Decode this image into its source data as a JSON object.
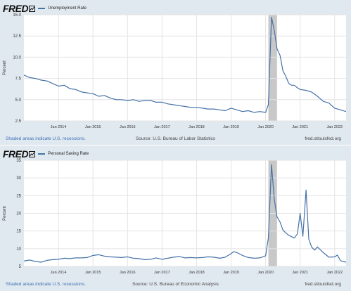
{
  "colors": {
    "line": "#4572a7",
    "recession": "#c8c8c8",
    "grid": "#e4e4e4",
    "plot_bg": "#ffffff",
    "panel_bg": "#e1e9f0"
  },
  "icons": {
    "logo": "fred-logo-chart-mark"
  },
  "chart_data": [
    {
      "type": "line",
      "logo": "FRED",
      "legend": "Unemployment Rate",
      "ylabel": "Percent",
      "ylim": [
        2.5,
        15.0
      ],
      "yticks": [
        "2.5",
        "5.0",
        "7.5",
        "10.0",
        "12.5",
        "15.0"
      ],
      "ytick_values": [
        2.5,
        5.0,
        7.5,
        10.0,
        12.5,
        15.0
      ],
      "xlim": [
        2013.0,
        2022.33
      ],
      "xticks": [
        "Jan 2014",
        "Jan 2015",
        "Jan 2016",
        "Jan 2017",
        "Jan 2018",
        "Jan 2019",
        "Jan 2020",
        "Jan 2021",
        "Jan 2022"
      ],
      "xtick_values": [
        2014,
        2015,
        2016,
        2017,
        2018,
        2019,
        2020,
        2021,
        2022
      ],
      "recession": [
        2020.08,
        2020.33
      ],
      "grid": true,
      "series": [
        {
          "x": [
            2013.0,
            2013.17,
            2013.33,
            2013.5,
            2013.67,
            2013.83,
            2014.0,
            2014.17,
            2014.33,
            2014.5,
            2014.67,
            2014.83,
            2015.0,
            2015.17,
            2015.33,
            2015.5,
            2015.67,
            2015.83,
            2016.0,
            2016.17,
            2016.33,
            2016.5,
            2016.67,
            2016.83,
            2017.0,
            2017.17,
            2017.33,
            2017.5,
            2017.67,
            2017.83,
            2018.0,
            2018.17,
            2018.33,
            2018.5,
            2018.67,
            2018.83,
            2019.0,
            2019.17,
            2019.33,
            2019.5,
            2019.67,
            2019.83,
            2020.0,
            2020.08,
            2020.17,
            2020.25,
            2020.33,
            2020.42,
            2020.5,
            2020.58,
            2020.67,
            2020.75,
            2020.83,
            2020.92,
            2021.0,
            2021.17,
            2021.33,
            2021.5,
            2021.67,
            2021.83,
            2022.0,
            2022.17,
            2022.33
          ],
          "values": [
            7.9,
            7.6,
            7.5,
            7.3,
            7.2,
            6.9,
            6.6,
            6.7,
            6.3,
            6.2,
            5.9,
            5.8,
            5.7,
            5.4,
            5.5,
            5.2,
            5.0,
            5.0,
            4.9,
            5.0,
            4.8,
            4.9,
            4.9,
            4.7,
            4.7,
            4.5,
            4.4,
            4.3,
            4.2,
            4.1,
            4.1,
            4.0,
            3.9,
            3.9,
            3.8,
            3.7,
            4.0,
            3.8,
            3.6,
            3.7,
            3.5,
            3.6,
            3.5,
            4.4,
            14.7,
            13.2,
            11.0,
            10.2,
            8.4,
            7.8,
            6.9,
            6.7,
            6.7,
            6.4,
            6.2,
            6.1,
            5.9,
            5.4,
            4.8,
            4.6,
            4.0,
            3.8,
            3.6
          ]
        }
      ],
      "footer": {
        "note": "Shaded areas indicate U.S. recessions.",
        "source": "Source: U.S. Bureau of Labor Statistics",
        "url": "fred.stlouisfed.org"
      }
    },
    {
      "type": "line",
      "logo": "FRED",
      "legend": "Personal Saving Rate",
      "ylabel": "Percent",
      "ylim": [
        5,
        35
      ],
      "yticks": [
        "5",
        "10",
        "15",
        "20",
        "25",
        "30",
        "35"
      ],
      "ytick_values": [
        5,
        10,
        15,
        20,
        25,
        30,
        35
      ],
      "xlim": [
        2013.0,
        2022.33
      ],
      "xticks": [
        "Jan 2014",
        "Jan 2015",
        "Jan 2016",
        "Jan 2017",
        "Jan 2018",
        "Jan 2019",
        "Jan 2020",
        "Jan 2021",
        "Jan 2022"
      ],
      "xtick_values": [
        2014,
        2015,
        2016,
        2017,
        2018,
        2019,
        2020,
        2021,
        2022
      ],
      "recession": [
        2020.08,
        2020.33
      ],
      "grid": true,
      "series": [
        {
          "x": [
            2013.0,
            2013.17,
            2013.33,
            2013.5,
            2013.67,
            2013.83,
            2014.0,
            2014.17,
            2014.33,
            2014.5,
            2014.67,
            2014.83,
            2015.0,
            2015.17,
            2015.33,
            2015.5,
            2015.67,
            2015.83,
            2016.0,
            2016.17,
            2016.33,
            2016.5,
            2016.67,
            2016.83,
            2017.0,
            2017.17,
            2017.33,
            2017.5,
            2017.67,
            2017.83,
            2018.0,
            2018.17,
            2018.33,
            2018.5,
            2018.67,
            2018.83,
            2019.0,
            2019.08,
            2019.17,
            2019.33,
            2019.5,
            2019.67,
            2019.83,
            2020.0,
            2020.08,
            2020.17,
            2020.25,
            2020.33,
            2020.42,
            2020.5,
            2020.58,
            2020.67,
            2020.83,
            2020.92,
            2021.0,
            2021.08,
            2021.17,
            2021.25,
            2021.33,
            2021.42,
            2021.5,
            2021.67,
            2021.83,
            2022.0,
            2022.08,
            2022.17,
            2022.33
          ],
          "values": [
            6.5,
            6.8,
            6.4,
            6.2,
            6.7,
            6.9,
            7.0,
            7.3,
            7.2,
            7.4,
            7.4,
            7.5,
            8.1,
            8.3,
            7.9,
            7.7,
            7.6,
            7.5,
            7.7,
            7.3,
            7.2,
            6.9,
            7.0,
            7.4,
            7.0,
            7.3,
            7.6,
            7.8,
            7.4,
            7.5,
            7.4,
            7.5,
            7.7,
            7.6,
            7.3,
            7.6,
            8.6,
            9.2,
            8.9,
            8.1,
            7.5,
            7.3,
            7.4,
            8.0,
            13.0,
            33.8,
            24.0,
            19.0,
            17.5,
            15.3,
            14.5,
            13.8,
            13.0,
            14.2,
            20.0,
            13.5,
            26.6,
            12.7,
            10.5,
            9.6,
            10.5,
            8.9,
            7.6,
            7.7,
            8.2,
            6.6,
            6.2
          ]
        }
      ],
      "footer": {
        "note": "Shaded areas indicate U.S. recessions.",
        "source": "Source: U.S. Bureau of Economic Analysis",
        "url": "fred.stlouisfed.org"
      }
    }
  ]
}
